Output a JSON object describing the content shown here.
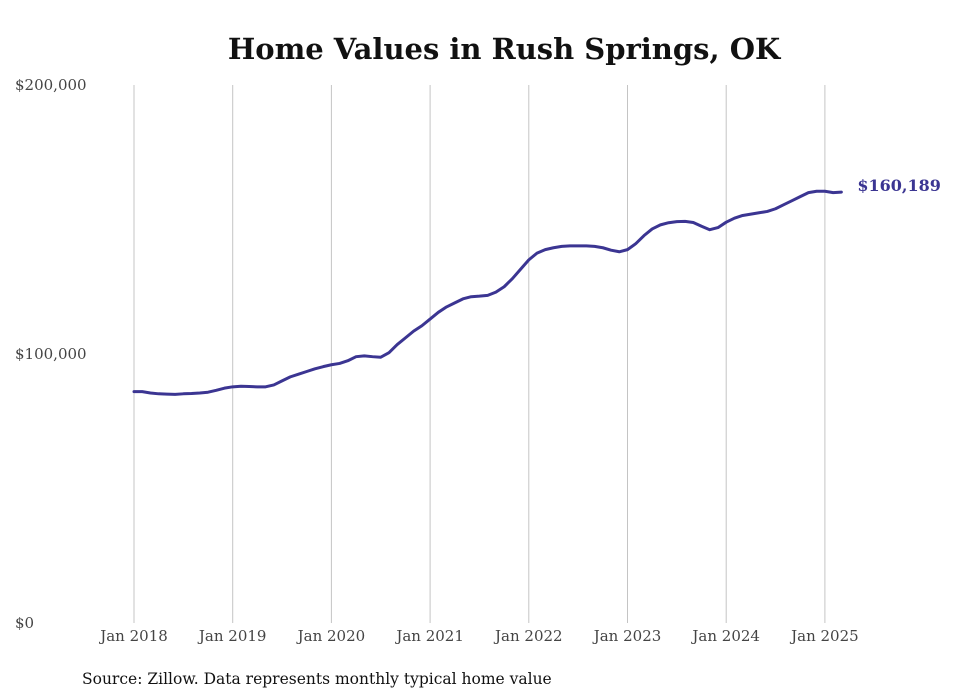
{
  "chart_data": {
    "type": "line",
    "title": "Home Values in Rush Springs, OK",
    "source": "Source: Zillow. Data represents monthly typical home value",
    "ylim": [
      0,
      200000
    ],
    "yticks": [
      {
        "value": 0,
        "label": "$0"
      },
      {
        "value": 100000,
        "label": "$100,000"
      },
      {
        "value": 200000,
        "label": "$200,000"
      }
    ],
    "xticks": [
      "Jan 2018",
      "Jan 2019",
      "Jan 2020",
      "Jan 2021",
      "Jan 2022",
      "Jan 2023",
      "Jan 2024",
      "Jan 2025"
    ],
    "grid": "vertical",
    "line_color": "#3b3592",
    "end_label": "$160,189",
    "series": [
      {
        "start": "2018-01",
        "values": [
          86000,
          86000,
          85500,
          85200,
          85100,
          85000,
          85200,
          85300,
          85500,
          85800,
          86500,
          87300,
          87800,
          88000,
          87900,
          87800,
          87800,
          88500,
          90000,
          91500,
          92500,
          93500,
          94500,
          95300,
          96000,
          96500,
          97500,
          99000,
          99300,
          99000,
          98800,
          100500,
          103500,
          106000,
          108500,
          110500,
          113000,
          115500,
          117500,
          119000,
          120500,
          121300,
          121500,
          121800,
          123000,
          125000,
          128000,
          131500,
          135000,
          137500,
          138800,
          139500,
          140000,
          140200,
          140200,
          140200,
          140000,
          139500,
          138600,
          138000,
          138800,
          141000,
          144000,
          146500,
          148000,
          148800,
          149200,
          149300,
          148900,
          147500,
          146200,
          147000,
          149000,
          150500,
          151500,
          152000,
          152500,
          153000,
          154000,
          155500,
          157000,
          158500,
          160000,
          160500,
          160500,
          160000,
          160189
        ]
      }
    ]
  }
}
